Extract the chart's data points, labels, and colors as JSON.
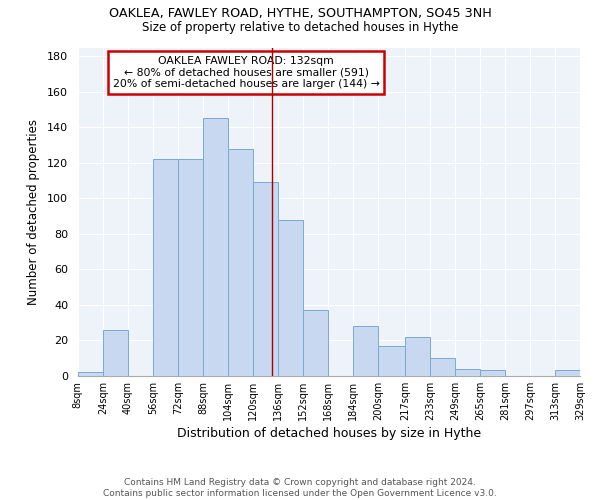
{
  "title": "OAKLEA, FAWLEY ROAD, HYTHE, SOUTHAMPTON, SO45 3NH",
  "subtitle": "Size of property relative to detached houses in Hythe",
  "xlabel": "Distribution of detached houses by size in Hythe",
  "ylabel": "Number of detached properties",
  "footer_line1": "Contains HM Land Registry data © Crown copyright and database right 2024.",
  "footer_line2": "Contains public sector information licensed under the Open Government Licence v3.0.",
  "annotation_line1": "OAKLEA FAWLEY ROAD: 132sqm",
  "annotation_line2": "← 80% of detached houses are smaller (591)",
  "annotation_line3": "20% of semi-detached houses are larger (144) →",
  "bar_color": "#c8d8f0",
  "bar_edge_color": "#7aaad0",
  "ref_line_color": "#aa0000",
  "annotation_box_edge": "#cc0000",
  "background_color": "#ffffff",
  "plot_bg_color": "#eef3fa",
  "grid_color": "#ffffff",
  "bin_edges": [
    8,
    24,
    40,
    56,
    72,
    88,
    104,
    120,
    136,
    152,
    168,
    184,
    200,
    217,
    233,
    249,
    265,
    281,
    297,
    313,
    329
  ],
  "counts": [
    2,
    26,
    0,
    122,
    122,
    145,
    128,
    109,
    88,
    37,
    0,
    28,
    17,
    22,
    10,
    4,
    3,
    0,
    0,
    3
  ],
  "ref_line_x": 132,
  "ylim": [
    0,
    185
  ],
  "yticks": [
    0,
    20,
    40,
    60,
    80,
    100,
    120,
    140,
    160,
    180
  ]
}
